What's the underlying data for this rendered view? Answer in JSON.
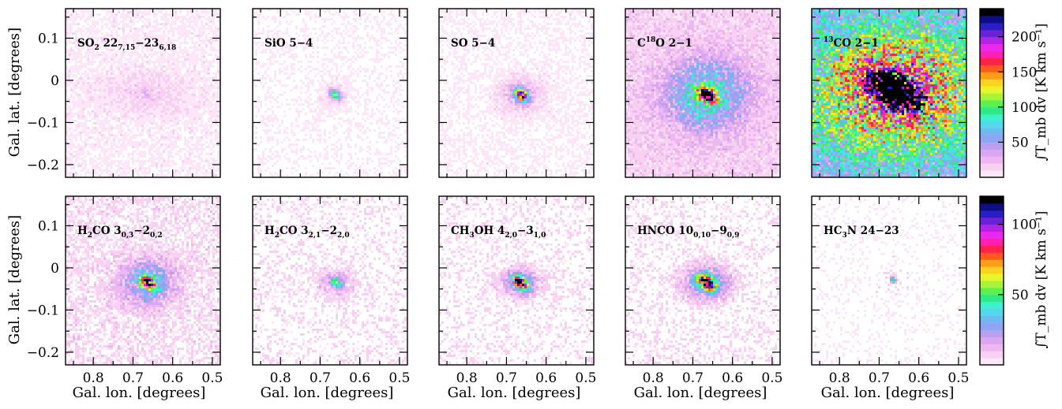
{
  "figure": {
    "x_axis_label": "Gal. lon. [degrees]",
    "y_axis_label": "Gal. lat. [degrees]",
    "x_tick_labels": [
      "0.8",
      "0.7",
      "0.6",
      "0.5"
    ],
    "y_tick_labels": [
      "0.1",
      "0",
      "−0.1",
      "−0.2"
    ],
    "colorbar_top": {
      "label": "∫T_mb dv [K km s⁻¹]",
      "tick_labels": [
        "50",
        "100",
        "150",
        "200"
      ]
    },
    "colorbar_bottom": {
      "label": "∫T_mb dv [K km s⁻¹]",
      "tick_labels": [
        "50",
        "100"
      ]
    }
  },
  "chart_data": [
    {
      "type": "heatmap",
      "title": "SO2 22_7,15−23_6,18",
      "xlabel": "",
      "ylabel": "Gal. lat. [degrees]",
      "xlim": [
        0.87,
        0.48
      ],
      "ylim": [
        -0.23,
        0.17
      ],
      "peak": {
        "x": 0.665,
        "y": -0.033
      },
      "intensity_max": 40,
      "colorbar_range": [
        0,
        240
      ]
    },
    {
      "type": "heatmap",
      "title": "SiO 5−4",
      "xlabel": "",
      "ylabel": "",
      "xlim": [
        0.87,
        0.48
      ],
      "ylim": [
        -0.23,
        0.17
      ],
      "peak": {
        "x": 0.662,
        "y": -0.035
      },
      "intensity_max": 110,
      "colorbar_range": [
        0,
        240
      ]
    },
    {
      "type": "heatmap",
      "title": "SO 5−4",
      "xlabel": "",
      "ylabel": "",
      "xlim": [
        0.87,
        0.48
      ],
      "ylim": [
        -0.23,
        0.17
      ],
      "peak": {
        "x": 0.662,
        "y": -0.035
      },
      "intensity_max": 240,
      "colorbar_range": [
        0,
        240
      ]
    },
    {
      "type": "heatmap",
      "title": "C18O 2−1",
      "xlabel": "",
      "ylabel": "",
      "xlim": [
        0.87,
        0.48
      ],
      "ylim": [
        -0.23,
        0.17
      ],
      "peak": {
        "x": 0.665,
        "y": -0.035
      },
      "intensity_max": 240,
      "colorbar_range": [
        0,
        240
      ]
    },
    {
      "type": "heatmap",
      "title": "13CO 2−1",
      "xlabel": "",
      "ylabel": "",
      "xlim": [
        0.87,
        0.48
      ],
      "ylim": [
        -0.23,
        0.17
      ],
      "peak": {
        "x": 0.66,
        "y": -0.025
      },
      "intensity_max": 240,
      "colorbar_range": [
        0,
        240
      ]
    },
    {
      "type": "heatmap",
      "title": "H2CO 3_0,3−2_0,2",
      "xlabel": "Gal. lon. [degrees]",
      "ylabel": "Gal. lat. [degrees]",
      "xlim": [
        0.87,
        0.48
      ],
      "ylim": [
        -0.23,
        0.17
      ],
      "peak": {
        "x": 0.662,
        "y": -0.035
      },
      "intensity_max": 90,
      "colorbar_range": [
        0,
        120
      ]
    },
    {
      "type": "heatmap",
      "title": "H2CO 3_2,1−2_2,0",
      "xlabel": "Gal. lon. [degrees]",
      "ylabel": "",
      "xlim": [
        0.87,
        0.48
      ],
      "ylim": [
        -0.23,
        0.17
      ],
      "peak": {
        "x": 0.66,
        "y": -0.035
      },
      "intensity_max": 55,
      "colorbar_range": [
        0,
        120
      ]
    },
    {
      "type": "heatmap",
      "title": "CH3OH 4_2,0−3_1,0",
      "xlabel": "Gal. lon. [degrees]",
      "ylabel": "",
      "xlim": [
        0.87,
        0.48
      ],
      "ylim": [
        -0.23,
        0.17
      ],
      "peak": {
        "x": 0.665,
        "y": -0.035
      },
      "intensity_max": 120,
      "colorbar_range": [
        0,
        120
      ]
    },
    {
      "type": "heatmap",
      "title": "HNCO 10_0,10−9_0,9",
      "xlabel": "Gal. lon. [degrees]",
      "ylabel": "",
      "xlim": [
        0.87,
        0.48
      ],
      "ylim": [
        -0.23,
        0.17
      ],
      "peak": {
        "x": 0.665,
        "y": -0.035
      },
      "intensity_max": 120,
      "colorbar_range": [
        0,
        120
      ]
    },
    {
      "type": "heatmap",
      "title": "HC3N 24−23",
      "xlabel": "Gal. lon. [degrees]",
      "ylabel": "",
      "xlim": [
        0.87,
        0.48
      ],
      "ylim": [
        -0.23,
        0.17
      ],
      "peak": {
        "x": 0.665,
        "y": -0.028
      },
      "intensity_max": 55,
      "colorbar_range": [
        0,
        120
      ]
    }
  ]
}
